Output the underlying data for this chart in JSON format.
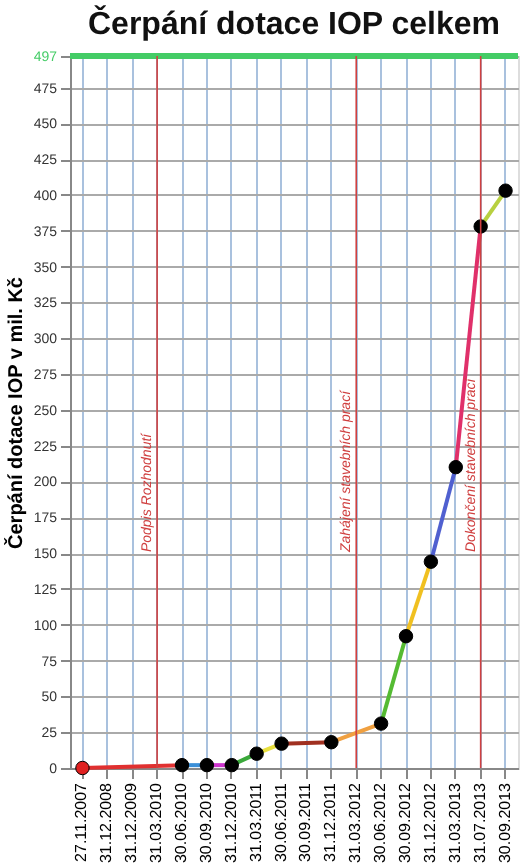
{
  "chart_data": {
    "type": "line",
    "title": "Čerpání dotace IOP celkem",
    "ylabel": "Čerpání dotace IOP v mil. Kč",
    "categories": [
      "27.11.2007",
      "31.12.2008",
      "31.12.2009",
      "31.03.2010",
      "30.06.2010",
      "30.09.2010",
      "31.12.2010",
      "31.03.2011",
      "30.06.2011",
      "30.09.2011",
      "31.12.2011",
      "31.03.2012",
      "30.06.2012",
      "30.09.2012",
      "31.12.2012",
      "31.03.2013",
      "31.07.2013",
      "30.09.2013"
    ],
    "series": [
      {
        "color": "#e03030",
        "values": [
          0,
          null,
          null,
          null,
          2,
          null,
          null,
          null,
          null,
          null,
          null,
          null,
          null,
          null,
          null,
          null,
          null,
          null
        ]
      },
      {
        "color": "#3a8fd8",
        "values": [
          null,
          null,
          null,
          null,
          2,
          2,
          null,
          null,
          null,
          null,
          null,
          null,
          null,
          null,
          null,
          null,
          null,
          null
        ]
      },
      {
        "color": "#cc33cc",
        "values": [
          null,
          null,
          null,
          null,
          null,
          2,
          2,
          null,
          null,
          null,
          null,
          null,
          null,
          null,
          null,
          null,
          null,
          null
        ]
      },
      {
        "color": "#3aa83a",
        "values": [
          null,
          null,
          null,
          null,
          null,
          null,
          2,
          10,
          null,
          null,
          null,
          null,
          null,
          null,
          null,
          null,
          null,
          null
        ]
      },
      {
        "color": "#e8e040",
        "values": [
          null,
          null,
          null,
          null,
          null,
          null,
          null,
          10,
          17,
          null,
          null,
          null,
          null,
          null,
          null,
          null,
          null,
          null
        ]
      },
      {
        "color": "#a03020",
        "values": [
          null,
          null,
          null,
          null,
          null,
          null,
          null,
          null,
          17,
          null,
          18,
          null,
          null,
          null,
          null,
          null,
          null,
          null
        ]
      },
      {
        "color": "#f0a040",
        "values": [
          null,
          null,
          null,
          null,
          null,
          null,
          null,
          null,
          null,
          null,
          18,
          null,
          31,
          null,
          null,
          null,
          null,
          null
        ]
      },
      {
        "color": "#55bb33",
        "values": [
          null,
          null,
          null,
          null,
          null,
          null,
          null,
          null,
          null,
          null,
          null,
          null,
          31,
          92,
          null,
          null,
          null,
          null
        ]
      },
      {
        "color": "#f0c020",
        "values": [
          null,
          null,
          null,
          null,
          null,
          null,
          null,
          null,
          null,
          null,
          null,
          null,
          null,
          92,
          144,
          null,
          null,
          null
        ]
      },
      {
        "color": "#5060d0",
        "values": [
          null,
          null,
          null,
          null,
          null,
          null,
          null,
          null,
          null,
          null,
          null,
          null,
          null,
          null,
          144,
          210,
          null,
          null
        ]
      },
      {
        "color": "#e0306a",
        "values": [
          null,
          null,
          null,
          null,
          null,
          null,
          null,
          null,
          null,
          null,
          null,
          null,
          null,
          null,
          null,
          210,
          378,
          null
        ]
      },
      {
        "color": "#b8d040",
        "values": [
          null,
          null,
          null,
          null,
          null,
          null,
          null,
          null,
          null,
          null,
          null,
          null,
          null,
          null,
          null,
          null,
          378,
          403
        ]
      },
      {
        "type": "scatter",
        "marker": "circle",
        "color": "#000000",
        "colors": [
          "#e02020",
          null,
          null,
          null,
          "#000000",
          "#000000",
          "#000000",
          "#000000",
          "#000000",
          null,
          "#000000",
          null,
          "#000000",
          "#000000",
          "#000000",
          "#000000",
          "#000000",
          "#000000"
        ],
        "values": [
          0,
          null,
          null,
          null,
          2,
          2,
          2,
          10,
          17,
          null,
          18,
          null,
          31,
          92,
          144,
          210,
          378,
          403
        ]
      }
    ],
    "ylim": [
      0,
      497
    ],
    "yticks": [
      0,
      25,
      50,
      75,
      100,
      125,
      150,
      175,
      200,
      225,
      250,
      275,
      300,
      325,
      350,
      375,
      400,
      425,
      450,
      475,
      497
    ],
    "ref_lines": [
      {
        "axis": "y",
        "value": 497,
        "color": "#44cc66"
      },
      {
        "axis": "x",
        "value": "31.03.2010",
        "label": "Podpis Rozhodnutí",
        "color": "#d04040"
      },
      {
        "axis": "x",
        "value": "31.03.2012",
        "label": "Zahájení stavebních prací",
        "color": "#d04040"
      },
      {
        "axis": "x",
        "value": "31.07.2013",
        "label": "Dokončení stavebních prací",
        "color": "#d04040"
      }
    ],
    "grid": true,
    "line_style": "solid"
  }
}
